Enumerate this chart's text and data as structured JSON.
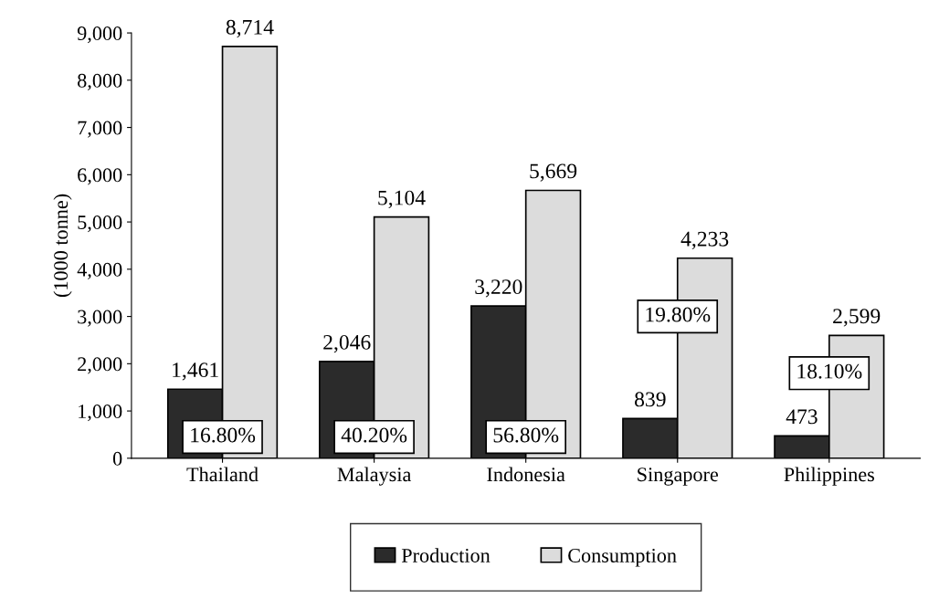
{
  "chart_data": {
    "type": "bar",
    "ylabel": "(1000 tonne)",
    "categories": [
      "Thailand",
      "Malaysia",
      "Indonesia",
      "Singapore",
      "Philippines"
    ],
    "series": [
      {
        "name": "Production",
        "color": "#2b2b2b",
        "values": [
          1461,
          2046,
          3220,
          839,
          473
        ],
        "value_labels": [
          "1,461",
          "2,046",
          "3,220",
          "839",
          "473"
        ]
      },
      {
        "name": "Consumption",
        "color": "#dcdcdc",
        "values": [
          8714,
          5104,
          5669,
          4233,
          2599
        ],
        "value_labels": [
          "8,714",
          "5,104",
          "5,669",
          "4,233",
          "2,599"
        ]
      }
    ],
    "ylim": [
      0,
      9000
    ],
    "yticks": [
      0,
      {
        "value": 1000,
        "label": "1,000"
      },
      {
        "value": 2000,
        "label": "2,000"
      },
      {
        "value": 3000,
        "label": "3,000"
      },
      {
        "value": 4000,
        "label": "4,000"
      },
      {
        "value": 5000,
        "label": "5,000"
      },
      {
        "value": 6000,
        "label": "6,000"
      },
      {
        "value": 7000,
        "label": "7,000"
      },
      {
        "value": 8000,
        "label": "8,000"
      },
      {
        "value": 9000,
        "label": "9,000"
      }
    ],
    "annotations": [
      {
        "text": "16.80%",
        "x": "Thailand",
        "y": 450
      },
      {
        "text": "40.20%",
        "x": "Malaysia",
        "y": 450
      },
      {
        "text": "56.80%",
        "x": "Indonesia",
        "y": 450
      },
      {
        "text": "19.80%",
        "x": "Singapore",
        "y": 3000
      },
      {
        "text": "18.10%",
        "x": "Philippines",
        "y": 1800
      }
    ],
    "grid": false,
    "legend": "bottom"
  }
}
